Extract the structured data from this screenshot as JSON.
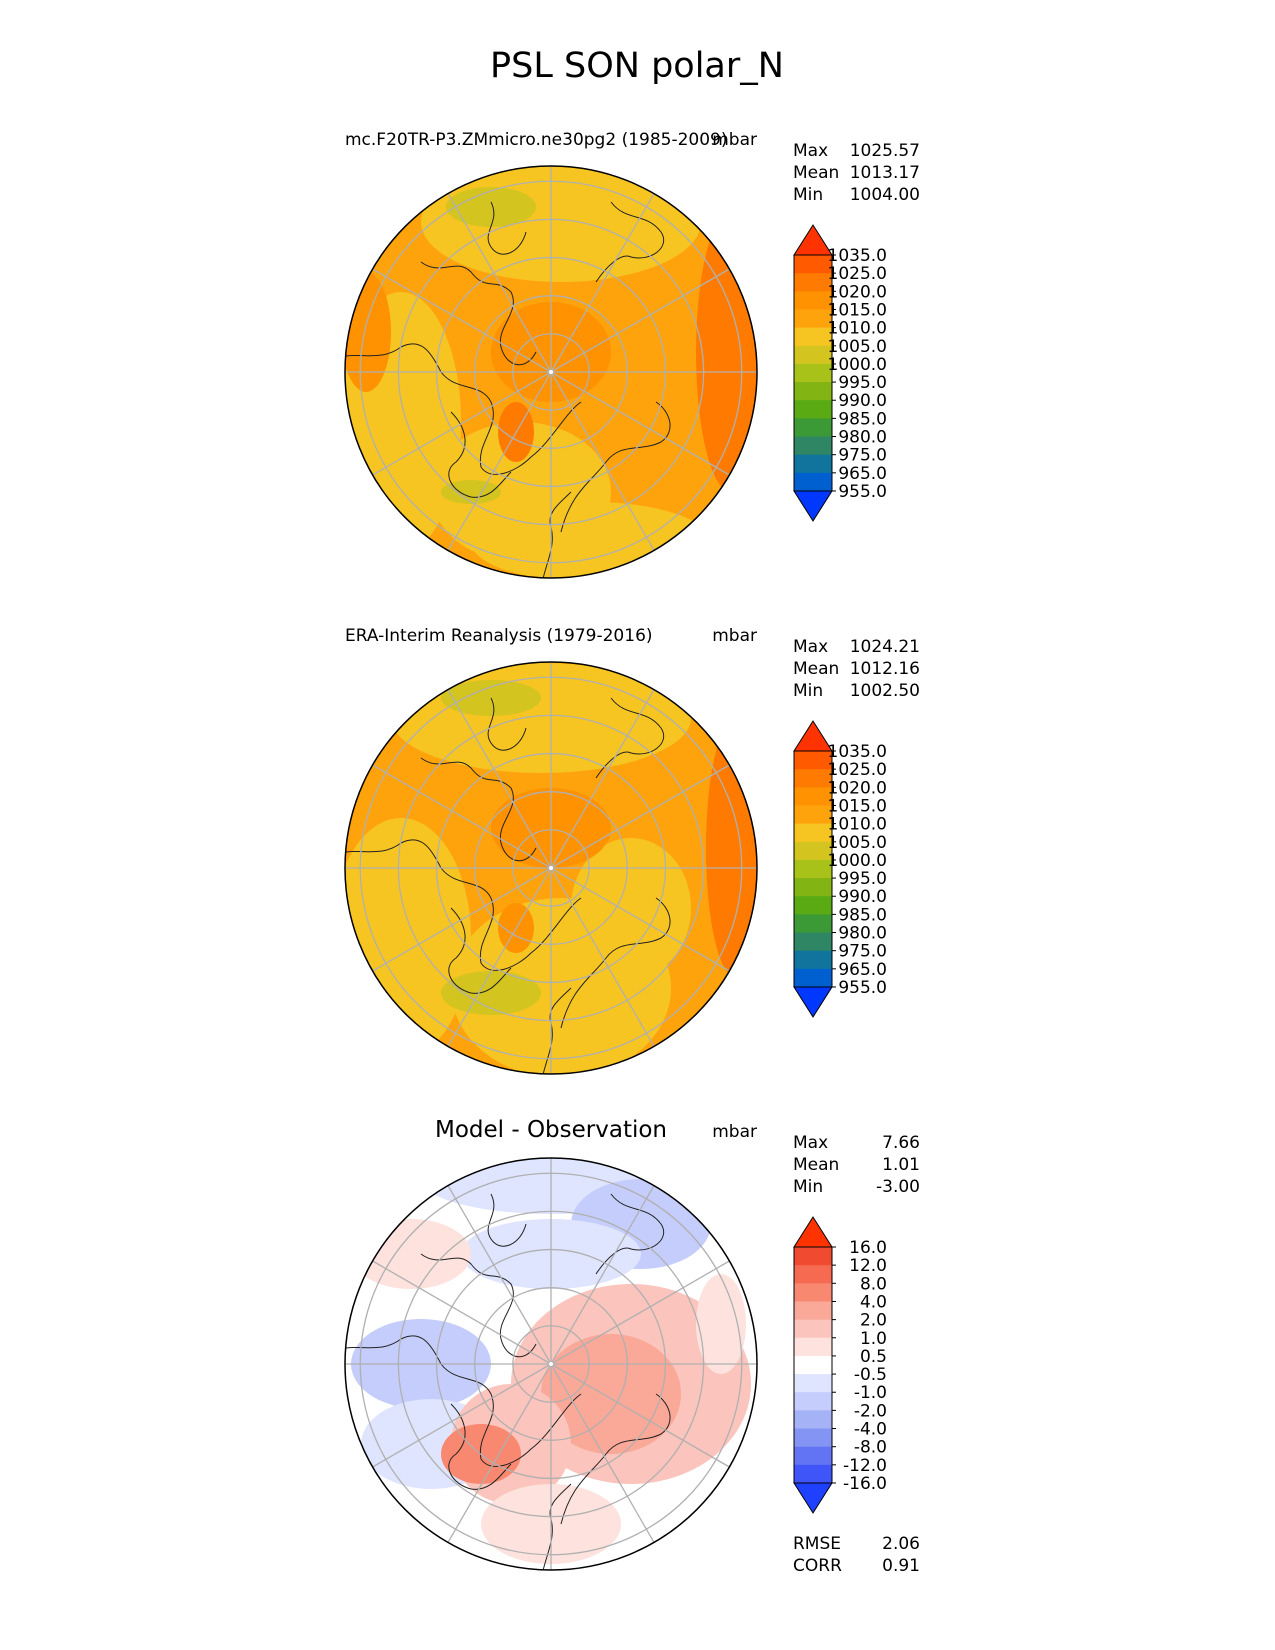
{
  "title": "PSL SON polar_N",
  "chart_data": [
    {
      "type": "heatmap",
      "projection": "north-polar-stereographic",
      "title": "mc.F20TR-P3.ZMmicro.ne30pg2 (1985-2009)",
      "units": "mbar",
      "stats": [
        {
          "label": "Max",
          "value": "1025.57"
        },
        {
          "label": "Mean",
          "value": "1013.17"
        },
        {
          "label": "Min",
          "value": "1004.00"
        }
      ],
      "colorbar": {
        "levels": [
          "1035.0",
          "1025.0",
          "1020.0",
          "1015.0",
          "1010.0",
          "1005.0",
          "1000.0",
          "995.0",
          "990.0",
          "985.0",
          "980.0",
          "975.0",
          "965.0",
          "955.0"
        ],
        "colors": [
          "#ff3300",
          "#ff5a00",
          "#ff7a00",
          "#ff9200",
          "#ffa30d",
          "#f6c522",
          "#d4c420",
          "#a9c21a",
          "#82b414",
          "#5aaa14",
          "#3c9a36",
          "#2f8664",
          "#11749c",
          "#0060d0",
          "#0038ff"
        ]
      },
      "approx_range": [
        1004.0,
        1025.57
      ]
    },
    {
      "type": "heatmap",
      "projection": "north-polar-stereographic",
      "title": "ERA-Interim Reanalysis (1979-2016)",
      "units": "mbar",
      "stats": [
        {
          "label": "Max",
          "value": "1024.21"
        },
        {
          "label": "Mean",
          "value": "1012.16"
        },
        {
          "label": "Min",
          "value": "1002.50"
        }
      ],
      "colorbar": {
        "levels": [
          "1035.0",
          "1025.0",
          "1020.0",
          "1015.0",
          "1010.0",
          "1005.0",
          "1000.0",
          "995.0",
          "990.0",
          "985.0",
          "980.0",
          "975.0",
          "965.0",
          "955.0"
        ],
        "colors": [
          "#ff3300",
          "#ff5a00",
          "#ff7a00",
          "#ff9200",
          "#ffa30d",
          "#f6c522",
          "#d4c420",
          "#a9c21a",
          "#82b414",
          "#5aaa14",
          "#3c9a36",
          "#2f8664",
          "#11749c",
          "#0060d0",
          "#0038ff"
        ]
      },
      "approx_range": [
        1002.5,
        1024.21
      ]
    },
    {
      "type": "heatmap",
      "projection": "north-polar-stereographic",
      "title": "Model - Observation",
      "units": "mbar",
      "stats": [
        {
          "label": "Max",
          "value": "7.66"
        },
        {
          "label": "Mean",
          "value": "1.01"
        },
        {
          "label": "Min",
          "value": "-3.00"
        }
      ],
      "colorbar": {
        "levels": [
          "16.0",
          "12.0",
          "8.0",
          "4.0",
          "2.0",
          "1.0",
          "0.5",
          "-0.5",
          "-1.0",
          "-2.0",
          "-4.0",
          "-8.0",
          "-12.0",
          "-16.0"
        ],
        "colors": [
          "#ff3300",
          "#f04a30",
          "#f56a50",
          "#f88870",
          "#faa898",
          "#fbc4bc",
          "#fde2de",
          "#ffffff",
          "#dfe4ff",
          "#c4cdfb",
          "#a6b2f6",
          "#8494f4",
          "#6274f4",
          "#3f55f8",
          "#1f40ff"
        ]
      },
      "approx_range": [
        -3.0,
        7.66
      ],
      "metrics": [
        {
          "label": "RMSE",
          "value": "2.06"
        },
        {
          "label": "CORR",
          "value": "0.91"
        }
      ]
    }
  ]
}
